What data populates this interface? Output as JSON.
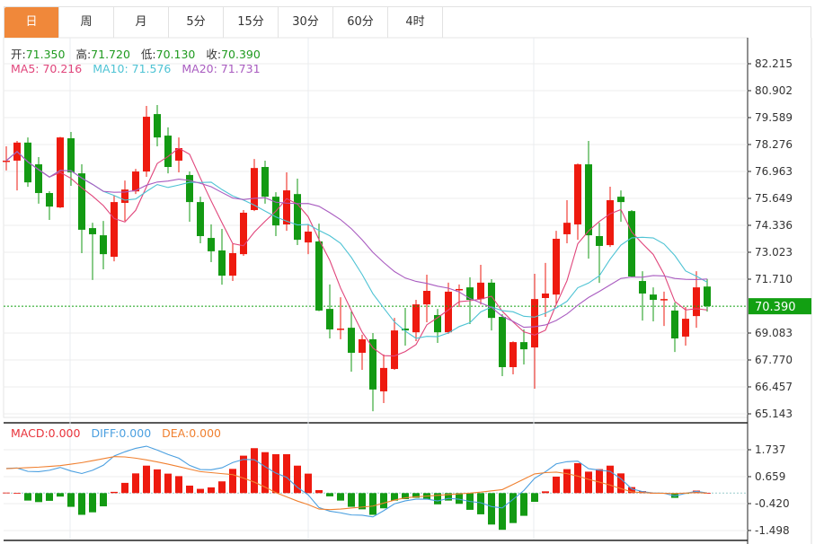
{
  "tabs": [
    "日",
    "周",
    "月",
    "5分",
    "15分",
    "30分",
    "60分",
    "4时"
  ],
  "active_tab": 0,
  "ohlc_info": {
    "open_label": "开:",
    "open": "71.350",
    "high_label": "高:",
    "high": "71.720",
    "low_label": "低:",
    "low": "70.130",
    "close_label": "收:",
    "close": "70.390"
  },
  "ma_info": {
    "ma5": "MA5: 70.216",
    "ma10": "MA10: 71.576",
    "ma20": "MA20: 71.731"
  },
  "macd_info": {
    "macd": "MACD:0.000",
    "diff": "DIFF:0.000",
    "dea": "DEA:0.000"
  },
  "colors": {
    "up": "#ee1a0f",
    "down": "#139a13",
    "ma5": "#e0457b",
    "ma10": "#4ec3d4",
    "ma20": "#a95cc0",
    "diff": "#4a9fe0",
    "dea": "#f08030",
    "accent": "#f0883a",
    "last_price_bg": "#12a012"
  },
  "chart_data": [
    {
      "type": "candlestick",
      "ylim": [
        65.143,
        82.215
      ],
      "yticks": [
        "82.215",
        "80.902",
        "79.589",
        "78.276",
        "76.963",
        "75.649",
        "74.336",
        "73.023",
        "71.710",
        "69.083",
        "67.770",
        "66.457",
        "65.143"
      ],
      "last_price": "70.390",
      "ohlc_order": [
        "open",
        "high",
        "low",
        "close"
      ],
      "candles": [
        [
          77.45,
          78.19,
          77.01,
          77.49
        ],
        [
          77.49,
          78.45,
          76.04,
          78.37
        ],
        [
          78.37,
          78.62,
          76.21,
          76.43
        ],
        [
          77.31,
          77.66,
          75.39,
          75.91
        ],
        [
          75.91,
          76.0,
          74.6,
          75.25
        ],
        [
          75.21,
          78.65,
          75.18,
          78.62
        ],
        [
          78.58,
          78.89,
          76.26,
          76.92
        ],
        [
          76.87,
          77.31,
          72.98,
          74.12
        ],
        [
          74.2,
          74.46,
          71.67,
          73.9
        ],
        [
          73.85,
          74.55,
          72.19,
          72.93
        ],
        [
          72.8,
          75.78,
          72.58,
          75.47
        ],
        [
          75.43,
          76.52,
          74.55,
          76.08
        ],
        [
          75.99,
          77.09,
          75.86,
          76.96
        ],
        [
          76.96,
          80.16,
          76.7,
          79.63
        ],
        [
          79.76,
          80.2,
          78.19,
          78.62
        ],
        [
          78.71,
          79.11,
          76.87,
          77.18
        ],
        [
          77.49,
          78.62,
          76.92,
          78.1
        ],
        [
          76.79,
          76.96,
          74.51,
          75.47
        ],
        [
          75.47,
          75.73,
          73.46,
          73.81
        ],
        [
          73.72,
          74.38,
          72.54,
          73.07
        ],
        [
          73.11,
          74.16,
          71.44,
          71.88
        ],
        [
          71.88,
          73.46,
          71.62,
          72.98
        ],
        [
          72.93,
          75.08,
          72.85,
          74.95
        ],
        [
          75.08,
          77.57,
          75.03,
          77.13
        ],
        [
          77.18,
          77.49,
          75.39,
          75.73
        ],
        [
          75.73,
          75.95,
          73.81,
          74.33
        ],
        [
          74.38,
          76.92,
          74.07,
          76.04
        ],
        [
          75.86,
          76.61,
          73.37,
          73.63
        ],
        [
          73.5,
          74.38,
          72.93,
          74.03
        ],
        [
          73.55,
          74.42,
          70.15,
          70.18
        ],
        [
          70.26,
          71.45,
          68.82,
          69.26
        ],
        [
          69.26,
          70.83,
          68.78,
          69.3
        ],
        [
          69.34,
          70.13,
          67.2,
          68.12
        ],
        [
          68.12,
          69.0,
          67.29,
          68.78
        ],
        [
          68.78,
          69.08,
          65.27,
          66.33
        ],
        [
          66.24,
          68.04,
          65.67,
          67.38
        ],
        [
          67.33,
          69.82,
          67.29,
          69.21
        ],
        [
          69.3,
          70.31,
          68.47,
          69.21
        ],
        [
          69.12,
          70.7,
          68.69,
          70.48
        ],
        [
          70.48,
          71.93,
          69.61,
          71.14
        ],
        [
          69.96,
          70.26,
          68.6,
          69.12
        ],
        [
          69.12,
          71.54,
          69.04,
          71.1
        ],
        [
          71.18,
          71.45,
          70.35,
          71.23
        ],
        [
          71.31,
          71.8,
          69.52,
          70.7
        ],
        [
          70.74,
          72.41,
          70.48,
          71.54
        ],
        [
          71.54,
          71.71,
          69.21,
          69.82
        ],
        [
          69.87,
          70.0,
          66.98,
          67.42
        ],
        [
          67.42,
          68.68,
          67.07,
          68.64
        ],
        [
          68.64,
          69.26,
          67.55,
          68.29
        ],
        [
          68.38,
          71.97,
          66.37,
          70.74
        ],
        [
          70.79,
          72.5,
          69.87,
          71.01
        ],
        [
          70.96,
          74.07,
          70.44,
          73.68
        ],
        [
          73.9,
          75.56,
          73.46,
          74.46
        ],
        [
          74.38,
          77.35,
          73.63,
          77.31
        ],
        [
          77.31,
          78.45,
          72.71,
          73.85
        ],
        [
          73.81,
          74.46,
          71.53,
          73.33
        ],
        [
          73.37,
          76.22,
          73.28,
          75.56
        ],
        [
          75.73,
          76.04,
          74.51,
          75.47
        ],
        [
          75.03,
          75.08,
          71.8,
          71.84
        ],
        [
          71.62,
          72.1,
          69.69,
          71.01
        ],
        [
          70.96,
          71.31,
          69.65,
          70.7
        ],
        [
          70.7,
          71.1,
          69.43,
          70.74
        ],
        [
          70.18,
          70.57,
          68.16,
          68.82
        ],
        [
          68.91,
          70.35,
          68.47,
          69.78
        ],
        [
          69.91,
          72.1,
          69.34,
          71.31
        ],
        [
          71.35,
          71.72,
          70.13,
          70.39
        ]
      ],
      "moving_averages": [
        "MA5",
        "MA10",
        "MA20"
      ]
    },
    {
      "type": "bar",
      "ylim": [
        -1.9,
        2.1
      ],
      "yticks": [
        "1.737",
        "0.659",
        "-0.420",
        "-1.498"
      ],
      "macd_hist": [
        0.02,
        0.01,
        -0.3,
        -0.36,
        -0.31,
        -0.14,
        -0.55,
        -0.87,
        -0.77,
        -0.53,
        0.05,
        0.41,
        0.79,
        1.1,
        0.95,
        0.78,
        0.68,
        0.3,
        0.17,
        0.23,
        0.47,
        0.97,
        1.5,
        1.8,
        1.64,
        1.56,
        1.56,
        1.1,
        0.78,
        0.12,
        -0.13,
        -0.3,
        -0.55,
        -0.65,
        -0.87,
        -0.61,
        -0.3,
        -0.24,
        -0.19,
        -0.24,
        -0.45,
        -0.3,
        -0.43,
        -0.67,
        -0.85,
        -1.26,
        -1.47,
        -1.2,
        -0.91,
        -0.35,
        0.07,
        0.66,
        0.96,
        1.2,
        0.86,
        0.96,
        1.1,
        0.79,
        0.24,
        0.08,
        0.01,
        0.01,
        -0.19,
        -0.02,
        0.1,
        0.01
      ],
      "dea": [
        0.98,
        1.0,
        1.02,
        1.04,
        1.07,
        1.1,
        1.16,
        1.22,
        1.3,
        1.38,
        1.46,
        1.45,
        1.4,
        1.33,
        1.25,
        1.16,
        1.06,
        0.96,
        0.86,
        0.82,
        0.78,
        0.74,
        0.6,
        0.44,
        0.24,
        0.02,
        -0.15,
        -0.32,
        -0.46,
        -0.64,
        -0.66,
        -0.64,
        -0.6,
        -0.56,
        -0.52,
        -0.4,
        -0.28,
        -0.19,
        -0.15,
        -0.12,
        -0.09,
        -0.06,
        -0.03,
        0.0,
        0.04,
        0.09,
        0.14,
        0.35,
        0.56,
        0.77,
        0.82,
        0.84,
        0.78,
        0.68,
        0.55,
        0.44,
        0.32,
        0.18,
        0.05,
        0.02,
        0.0,
        -0.01,
        -0.02,
        0.0,
        0.02,
        0.0
      ]
    }
  ]
}
